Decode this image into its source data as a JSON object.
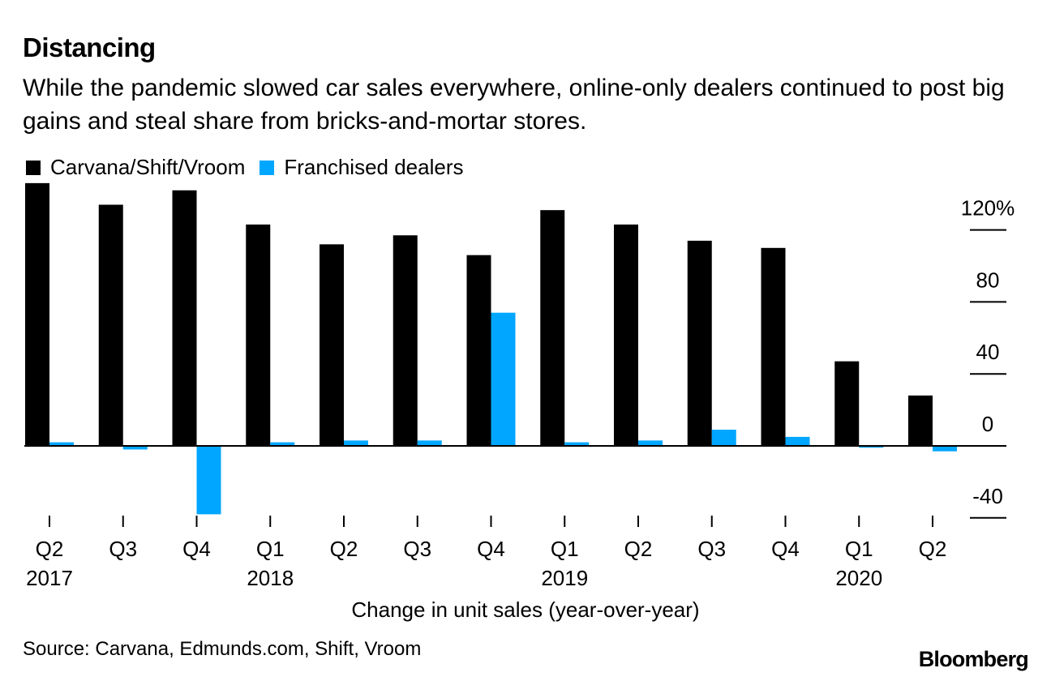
{
  "title": "Distancing",
  "subtitle": "While the pandemic slowed car sales everywhere, online-only dealers continued to post big gains and steal share from bricks-and-mortar stores.",
  "source": "Source: Carvana, Edmunds.com, Shift, Vroom",
  "brand": "Bloomberg",
  "colors": {
    "series1": "#000000",
    "series2": "#00a6ff",
    "axis": "#000000"
  },
  "chart_data": {
    "type": "bar",
    "xlabel": "Change in unit sales (year-over-year)",
    "categories": [
      "Q2",
      "Q3",
      "Q4",
      "Q1",
      "Q2",
      "Q3",
      "Q4",
      "Q1",
      "Q2",
      "Q3",
      "Q4",
      "Q1",
      "Q2"
    ],
    "year_labels": [
      "2017",
      "",
      "",
      "2018",
      "",
      "",
      "",
      "2019",
      "",
      "",
      "",
      "2020",
      ""
    ],
    "series": [
      {
        "name": "Carvana/Shift/Vroom",
        "color": "#000000",
        "values": [
          146,
          134,
          142,
          123,
          112,
          117,
          106,
          131,
          123,
          114,
          110,
          47,
          28
        ]
      },
      {
        "name": "Franchised dealers",
        "color": "#00a6ff",
        "values": [
          2,
          -2,
          -38,
          2,
          3,
          3,
          74,
          2,
          3,
          9,
          5,
          -1,
          -3
        ]
      }
    ],
    "y_ticks": [
      {
        "value": 120,
        "label": "120%"
      },
      {
        "value": 80,
        "label": "80"
      },
      {
        "value": 40,
        "label": "40"
      },
      {
        "value": 0,
        "label": "0"
      },
      {
        "value": -40,
        "label": "-40"
      }
    ],
    "ylim": [
      -40,
      146
    ],
    "grid": false,
    "legend_position": "top-left"
  }
}
